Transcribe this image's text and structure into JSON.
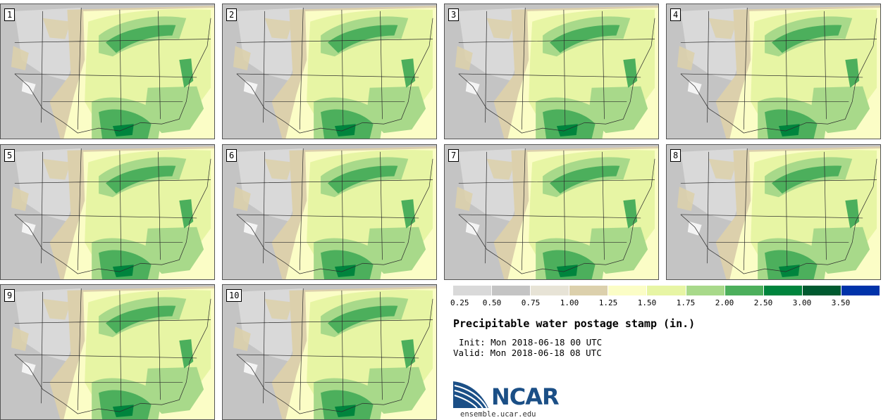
{
  "panels": [
    {
      "label": "1"
    },
    {
      "label": "2"
    },
    {
      "label": "3"
    },
    {
      "label": "4"
    },
    {
      "label": "5"
    },
    {
      "label": "6"
    },
    {
      "label": "7"
    },
    {
      "label": "8"
    },
    {
      "label": "9"
    },
    {
      "label": "10"
    }
  ],
  "legend": {
    "colors": [
      "#d9d9d9",
      "#c4c4c4",
      "#e7e3d6",
      "#dcd0ac",
      "#fbfdc6",
      "#e7f5a4",
      "#a8d98a",
      "#4caf5c",
      "#00843d",
      "#005a30",
      "#0033aa"
    ],
    "ticks": [
      "0.25",
      "0.50",
      "0.75",
      "1.00",
      "1.25",
      "1.50",
      "1.75",
      "2.00",
      "2.50",
      "3.00",
      "3.50"
    ]
  },
  "title": "Precipitable water postage stamp (in.)",
  "init": "Init: Mon 2018-06-18 00 UTC",
  "valid": "Valid: Mon 2018-06-18 08 UTC",
  "logo": {
    "text": "NCAR",
    "url": "ensemble.ucar.edu"
  }
}
